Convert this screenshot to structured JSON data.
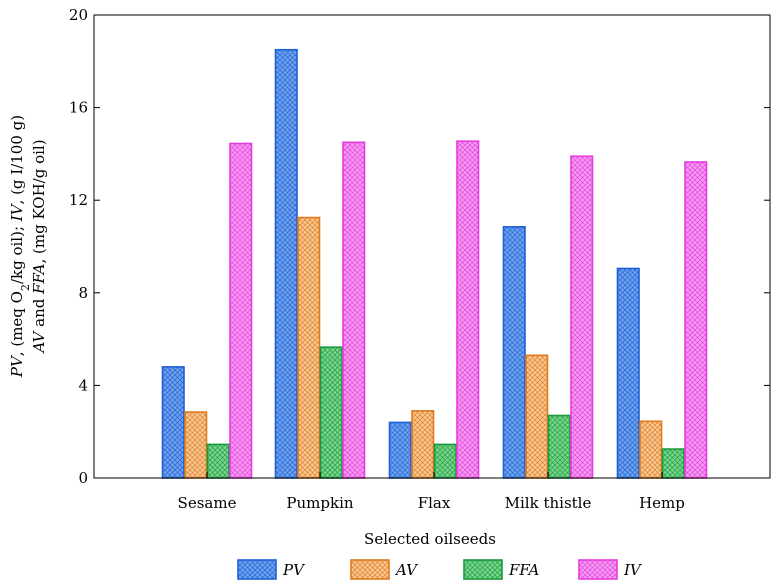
{
  "chart_data": {
    "type": "bar",
    "title": "",
    "xlabel": "Selected oilseeds",
    "ylabel": {
      "line1_parts": [
        "PV",
        ", (meq O",
        "2",
        "/kg oil); ",
        "IV",
        ", (g I/100 g)"
      ],
      "line2_parts": [
        "AV",
        " and ",
        "FFA",
        ", (mg KOH/g oil)"
      ]
    },
    "ylim": [
      0,
      20
    ],
    "yticks": [
      0,
      4,
      8,
      12,
      16,
      20
    ],
    "categories": [
      "Sesame",
      "Pumpkin",
      "Flax",
      "Milk thistle",
      "Hemp"
    ],
    "series": [
      {
        "name": "PV",
        "values": [
          4.8,
          18.5,
          2.4,
          10.85,
          9.05
        ],
        "edge": "#1f5fd6",
        "fill": "#6fa4ec"
      },
      {
        "name": "AV",
        "values": [
          2.85,
          11.25,
          2.9,
          5.3,
          2.45
        ],
        "edge": "#e07a1e",
        "fill": "#f6c896"
      },
      {
        "name": "FFA",
        "values": [
          1.45,
          5.65,
          1.45,
          2.7,
          1.25
        ],
        "edge": "#179a3c",
        "fill": "#7cd48e"
      },
      {
        "name": "IV",
        "values": [
          14.45,
          14.5,
          14.55,
          13.9,
          13.65
        ],
        "edge": "#e83adf",
        "fill": "#f39ff0"
      }
    ],
    "legend_position": "bottom",
    "grid": false
  }
}
